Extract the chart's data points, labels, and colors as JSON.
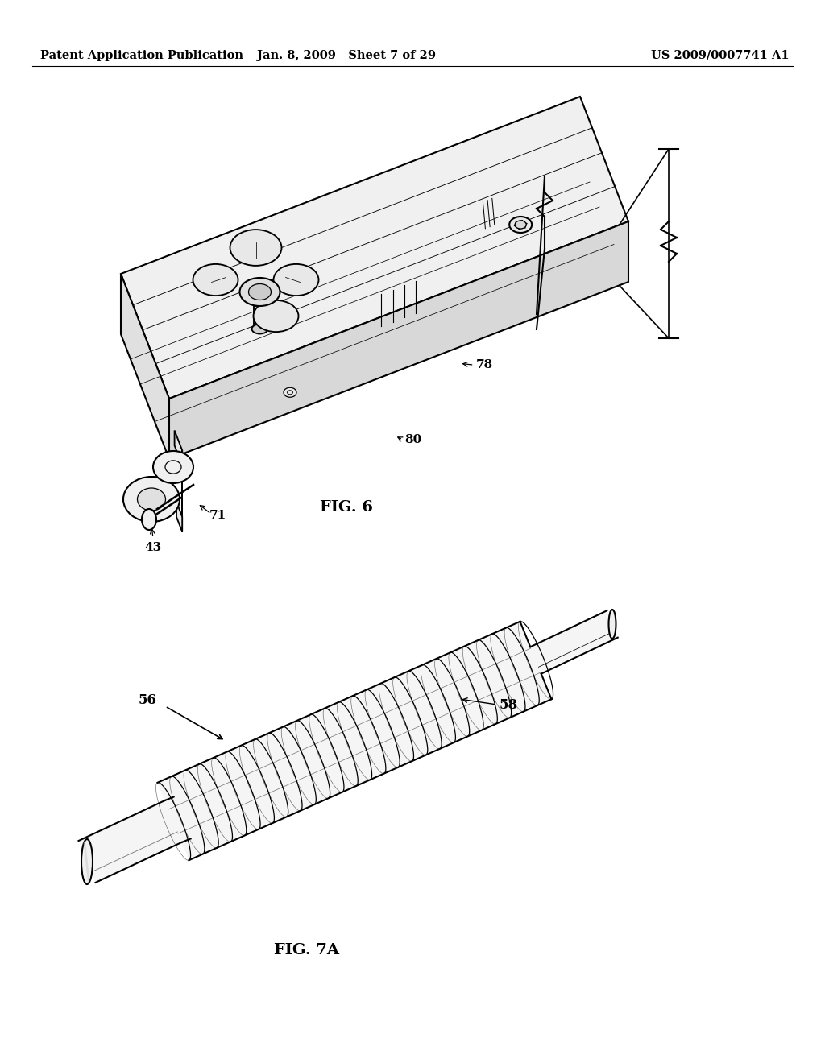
{
  "background_color": "#ffffff",
  "header_left": "Patent Application Publication",
  "header_center": "Jan. 8, 2009   Sheet 7 of 29",
  "header_right": "US 2009/0007741 A1",
  "line_color": "#000000",
  "fig6_caption": "FIG. 6",
  "fig7a_caption": "FIG. 7A"
}
